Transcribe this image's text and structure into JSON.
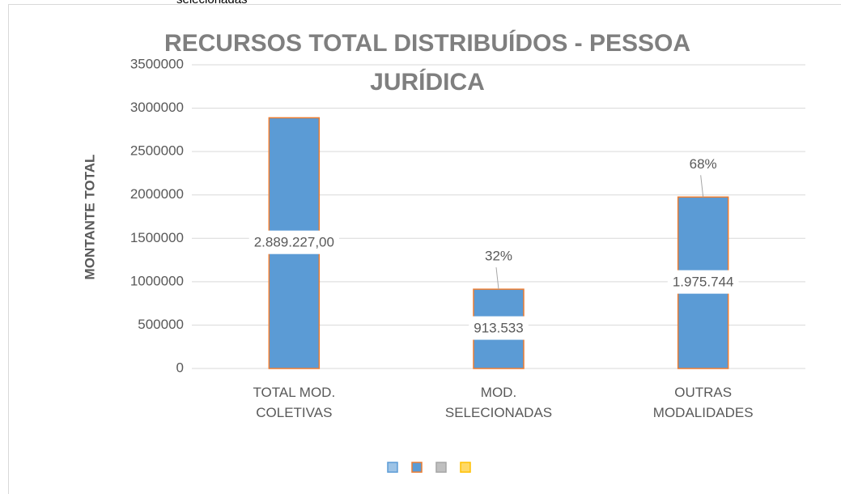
{
  "chart_data": {
    "type": "bar",
    "clipped_caption": "selecionadas",
    "title": "RECURSOS TOTAL DISTRIBUÍDOS - PESSOA JURÍDICA",
    "y_label": "MONTANTE TOTAL",
    "categories": [
      "TOTAL MOD. COLETIVAS",
      "MOD. SELECIONADAS",
      "OUTRAS MODALIDADES"
    ],
    "values": [
      2889227,
      913533,
      1975744
    ],
    "value_labels": [
      "2.889.227,00",
      "913.533",
      "1.975.744"
    ],
    "share_labels": [
      null,
      "32%",
      "68%"
    ],
    "color": "#5b9bd5",
    "edge_color": "#ed7d31",
    "ylim": [
      0,
      3500000
    ],
    "yticks": [
      0,
      500000,
      1000000,
      1500000,
      2000000,
      2500000,
      3000000,
      3500000
    ],
    "grid": true,
    "legend_colors": [
      {
        "fill": "#9dc3e6",
        "edge": "#5b9bd5"
      },
      {
        "fill": "#5b9bd5",
        "edge": "#ed7d31"
      },
      {
        "fill": "#bfbfbf",
        "edge": "#a5a5a5"
      },
      {
        "fill": "#ffd966",
        "edge": "#ffc000"
      }
    ]
  }
}
